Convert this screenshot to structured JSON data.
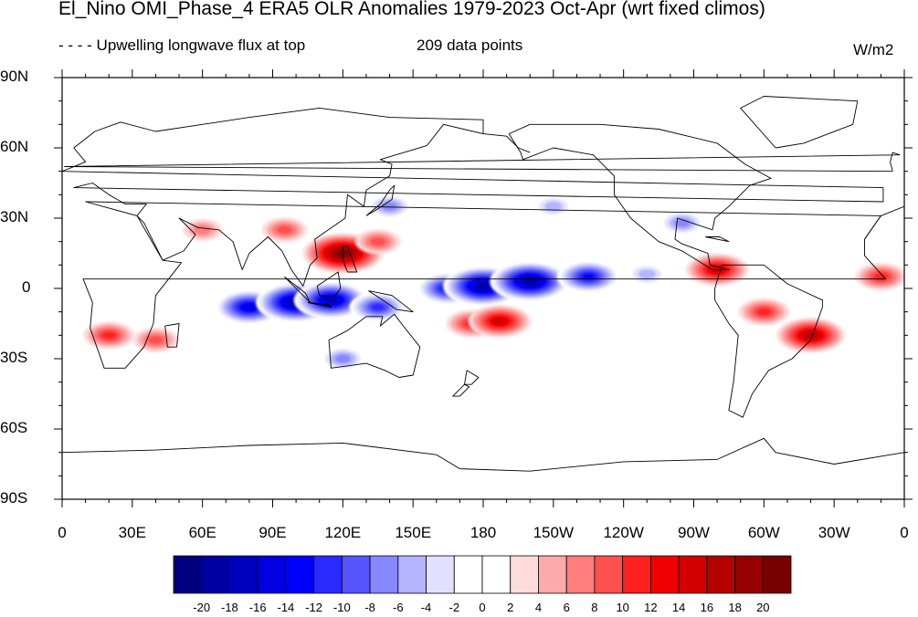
{
  "title": "El_Nino OMI_Phase_4 ERA5 OLR Anomalies 1979-2023 Oct-Apr (wrt fixed climos)",
  "subtitle_left": "- - - - Upwelling longwave flux at top",
  "subtitle_center": "209 data points",
  "units": "W/m2",
  "lat_labels": [
    "90N",
    "60N",
    "30N",
    "0",
    "30S",
    "60S",
    "90S"
  ],
  "lon_labels": [
    "0",
    "30E",
    "60E",
    "90E",
    "120E",
    "150E",
    "180",
    "150W",
    "120W",
    "90W",
    "60W",
    "30W",
    "0"
  ],
  "colorbar": {
    "labels": [
      "-20",
      "-18",
      "-16",
      "-14",
      "-12",
      "-10",
      "-8",
      "-6",
      "-4",
      "-2",
      "0",
      "2",
      "4",
      "6",
      "8",
      "10",
      "12",
      "14",
      "16",
      "18",
      "20"
    ],
    "colors": [
      "#000080",
      "#0000a0",
      "#0000c0",
      "#0000e0",
      "#0000ff",
      "#2a2aff",
      "#5555ff",
      "#8787ff",
      "#b4b4ff",
      "#e1e1ff",
      "#ffffff",
      "#ffffff",
      "#ffdcdc",
      "#ffaaaa",
      "#ff7d7d",
      "#ff5050",
      "#ff2020",
      "#f00000",
      "#d20000",
      "#b40000",
      "#960000",
      "#780000"
    ]
  },
  "chart_data": {
    "type": "heatmap",
    "title": "El_Nino OMI_Phase_4 ERA5 OLR Anomalies 1979-2023 Oct-Apr (wrt fixed climos)",
    "variable": "Upwelling longwave flux at top",
    "n_points": 209,
    "units": "W/m2",
    "lon_range": [
      0,
      360
    ],
    "lat_range": [
      -90,
      90
    ],
    "contour_levels": [
      -20,
      -18,
      -16,
      -14,
      -12,
      -10,
      -8,
      -6,
      -4,
      -2,
      0,
      2,
      4,
      6,
      8,
      10,
      12,
      14,
      16,
      18,
      20
    ],
    "anomaly_features": [
      {
        "lon": 80,
        "lat": -8,
        "value": -16
      },
      {
        "lon": 100,
        "lat": -6,
        "value": -20
      },
      {
        "lon": 115,
        "lat": -5,
        "value": -18
      },
      {
        "lon": 135,
        "lat": -8,
        "value": -12
      },
      {
        "lon": 165,
        "lat": 0,
        "value": -14
      },
      {
        "lon": 180,
        "lat": 1,
        "value": -20
      },
      {
        "lon": 200,
        "lat": 3,
        "value": -20
      },
      {
        "lon": 225,
        "lat": 5,
        "value": -14
      },
      {
        "lon": 250,
        "lat": 6,
        "value": -6
      },
      {
        "lon": 120,
        "lat": 15,
        "value": 20
      },
      {
        "lon": 135,
        "lat": 20,
        "value": 8
      },
      {
        "lon": 175,
        "lat": -15,
        "value": 10
      },
      {
        "lon": 187,
        "lat": -14,
        "value": 14
      },
      {
        "lon": 280,
        "lat": 8,
        "value": 14
      },
      {
        "lon": 300,
        "lat": -10,
        "value": 10
      },
      {
        "lon": 320,
        "lat": -20,
        "value": 16
      },
      {
        "lon": 350,
        "lat": 5,
        "value": 10
      },
      {
        "lon": 20,
        "lat": -20,
        "value": 10
      },
      {
        "lon": 40,
        "lat": -22,
        "value": 8
      },
      {
        "lon": 60,
        "lat": 25,
        "value": 6
      },
      {
        "lon": 95,
        "lat": 25,
        "value": 8
      },
      {
        "lon": 265,
        "lat": 28,
        "value": -8
      },
      {
        "lon": 140,
        "lat": 35,
        "value": -8
      },
      {
        "lon": 120,
        "lat": -30,
        "value": -8
      },
      {
        "lon": 210,
        "lat": 35,
        "value": -6
      }
    ]
  }
}
